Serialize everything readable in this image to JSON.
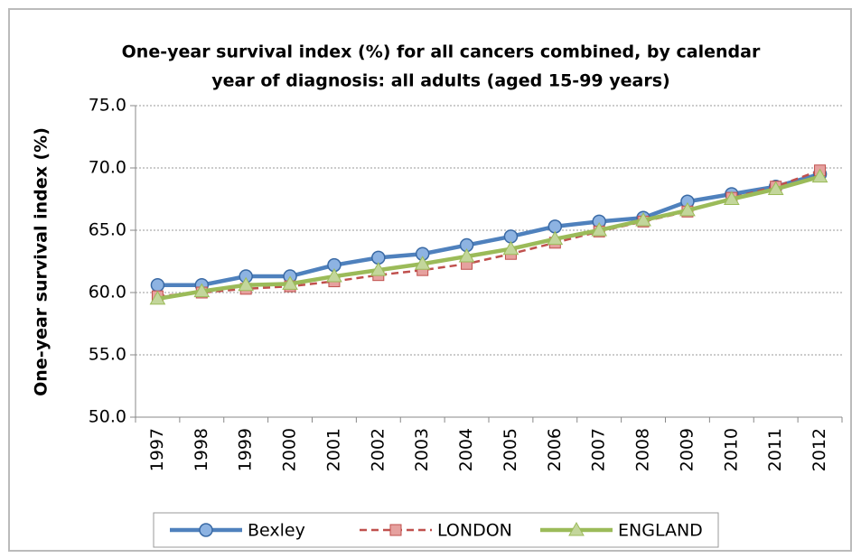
{
  "chart_data": {
    "type": "line",
    "title": [
      "One-year survival index (%) for all cancers combined, by calendar",
      "year of diagnosis: all adults (aged 15-99 years)"
    ],
    "y_label": "One-year survival index (%)",
    "categories": [
      "1997",
      "1998",
      "1999",
      "2000",
      "2001",
      "2002",
      "2003",
      "2004",
      "2005",
      "2006",
      "2007",
      "2008",
      "2009",
      "2010",
      "2011",
      "2012"
    ],
    "series": [
      {
        "name": "Bexley",
        "color": "#4f81bd",
        "marker": "circle",
        "dash": false,
        "values": [
          60.6,
          60.6,
          61.3,
          61.3,
          62.2,
          62.8,
          63.1,
          63.8,
          64.5,
          65.3,
          65.7,
          66.0,
          67.3,
          67.9,
          68.5,
          69.5
        ]
      },
      {
        "name": "LONDON",
        "color": "#c0504d",
        "marker": "square",
        "dash": true,
        "values": [
          59.7,
          60.0,
          60.3,
          60.5,
          60.9,
          61.4,
          61.8,
          62.3,
          63.1,
          64.0,
          64.9,
          65.7,
          66.5,
          67.6,
          68.5,
          69.8
        ]
      },
      {
        "name": "ENGLAND",
        "color": "#9bbb59",
        "marker": "triangle",
        "dash": false,
        "values": [
          59.5,
          60.1,
          60.6,
          60.7,
          61.3,
          61.8,
          62.3,
          62.9,
          63.5,
          64.3,
          65.0,
          65.8,
          66.6,
          67.5,
          68.3,
          69.3
        ]
      }
    ],
    "ylim": [
      50,
      75
    ],
    "yticks": [
      {
        "value": 50,
        "label": "50.0"
      },
      {
        "value": 55,
        "label": "55.0"
      },
      {
        "value": 60,
        "label": "60.0"
      },
      {
        "value": 65,
        "label": "65.0"
      },
      {
        "value": 70,
        "label": "70.0"
      },
      {
        "value": 75,
        "label": "75.0"
      }
    ],
    "grid": true,
    "legend": "bottom"
  }
}
